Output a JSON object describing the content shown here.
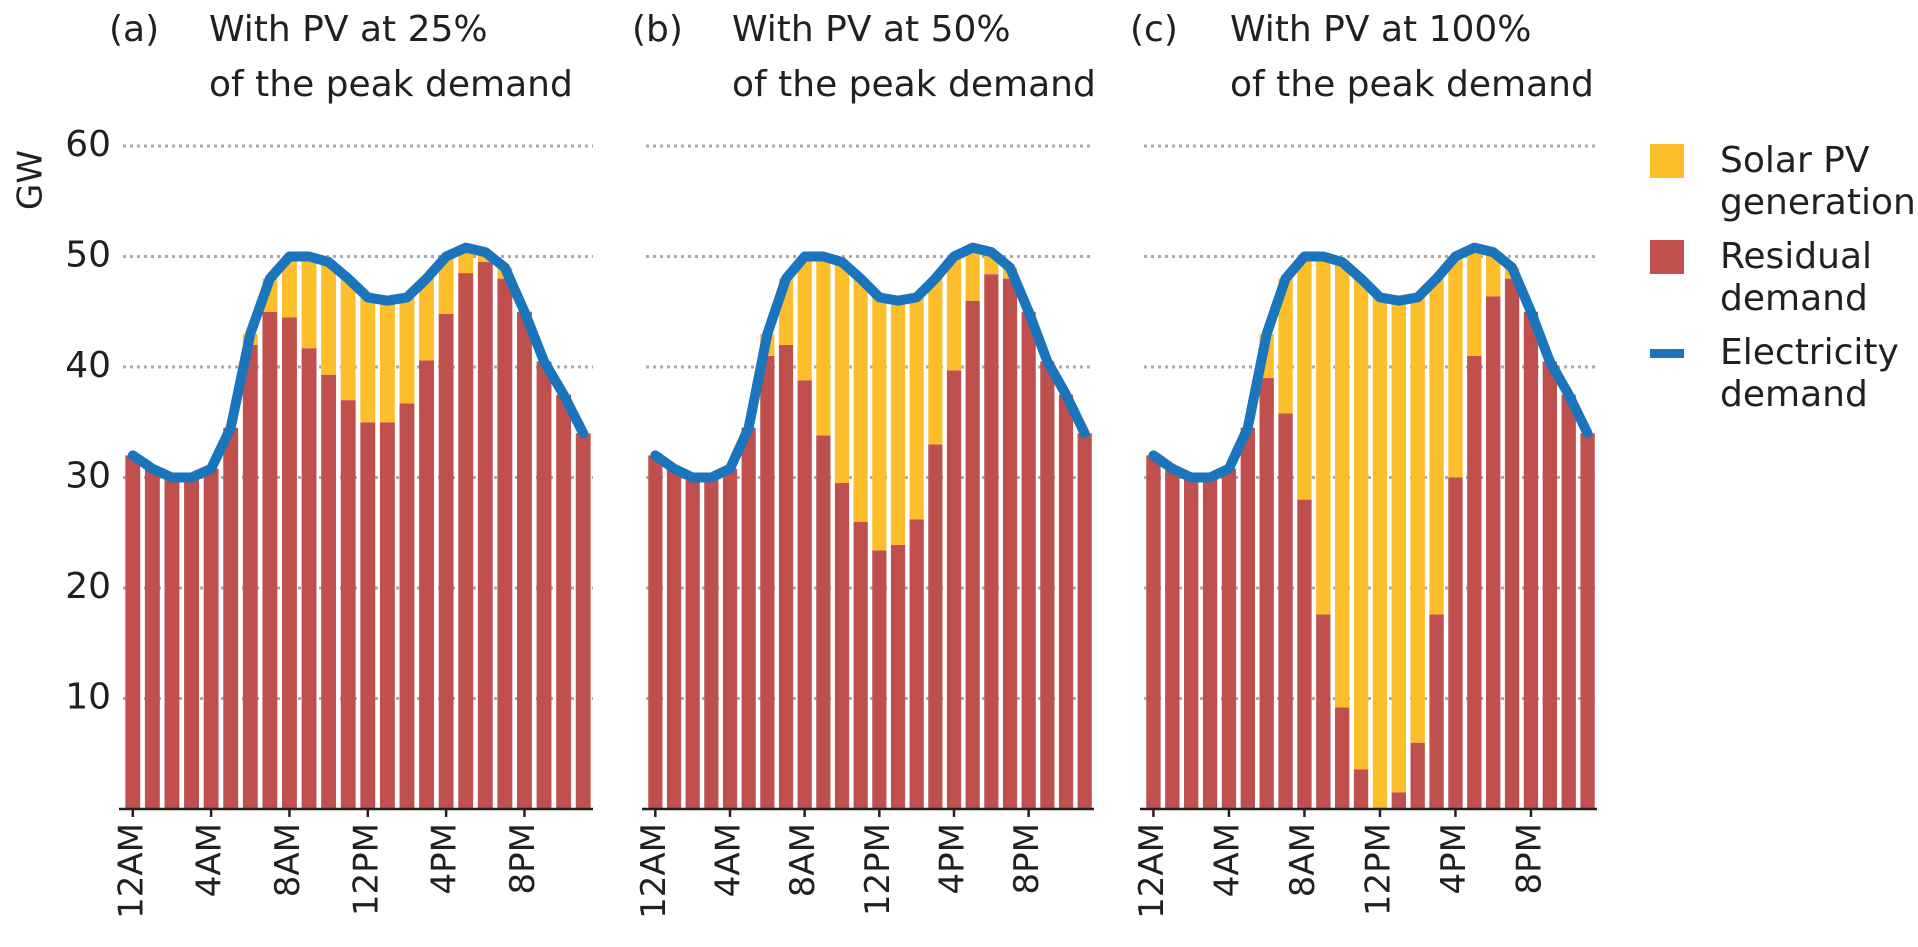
{
  "chart_data": [
    {
      "type": "bar",
      "stacked": true,
      "panel": "(a)",
      "title": [
        "With PV at 25%",
        "of the peak demand"
      ],
      "ylabel": "GW",
      "categories": [
        "12AM",
        null,
        null,
        null,
        "4AM",
        null,
        null,
        null,
        "8AM",
        null,
        null,
        null,
        "12PM",
        null,
        null,
        null,
        "4PM",
        null,
        null,
        null,
        "8PM",
        null,
        null,
        null
      ],
      "series": [
        {
          "name": "Solar PV generation",
          "type": "bar",
          "color": "#fdbe2c",
          "values": [
            0,
            0,
            0,
            0,
            0,
            0,
            1,
            3,
            5.5,
            8.3,
            10.2,
            11,
            11.3,
            11,
            9.6,
            7.4,
            5.2,
            2.3,
            0.9,
            1,
            0,
            0,
            0,
            0
          ]
        },
        {
          "name": "Residual demand",
          "type": "bar",
          "color": "#c0504d",
          "values": [
            32,
            30.8,
            30,
            30,
            30.8,
            34.5,
            42,
            45,
            44.5,
            41.7,
            39.3,
            37,
            35,
            35,
            36.7,
            40.6,
            44.8,
            48.5,
            49.5,
            48,
            45,
            40.5,
            37.5,
            34
          ]
        },
        {
          "name": "Electricity demand",
          "type": "line",
          "color": "#1a75bc",
          "values": [
            32,
            30.8,
            30,
            30,
            30.8,
            34.5,
            43,
            48,
            50,
            50,
            49.5,
            48,
            46.3,
            46,
            46.3,
            48,
            50,
            50.8,
            50.4,
            49,
            45,
            40.5,
            37.5,
            34
          ]
        }
      ],
      "ylim": [
        0,
        60
      ],
      "yticks": [
        10,
        20,
        30,
        40,
        50,
        60
      ],
      "grid": true
    },
    {
      "type": "bar",
      "stacked": true,
      "panel": "(b)",
      "title": [
        "With PV at 50%",
        "of the peak demand"
      ],
      "categories": [
        "12AM",
        null,
        null,
        null,
        "4AM",
        null,
        null,
        null,
        "8AM",
        null,
        null,
        null,
        "12PM",
        null,
        null,
        null,
        "4PM",
        null,
        null,
        null,
        "8PM",
        null,
        null,
        null
      ],
      "series": [
        {
          "type": "bar",
          "color": "#fdbe2c",
          "values": [
            0,
            0,
            0,
            0,
            0,
            0,
            2,
            6,
            11.2,
            16.2,
            20,
            22,
            22.9,
            22.1,
            20.1,
            15,
            10.3,
            4.8,
            2,
            1,
            0,
            0,
            0,
            0
          ]
        },
        {
          "type": "bar",
          "color": "#c0504d",
          "values": [
            32,
            30.8,
            30,
            30,
            30.8,
            34.5,
            41,
            42,
            38.8,
            33.8,
            29.5,
            26,
            23.4,
            23.9,
            26.2,
            33,
            39.7,
            46,
            48.4,
            48,
            45,
            40.5,
            37.5,
            34
          ]
        },
        {
          "type": "line",
          "color": "#1a75bc",
          "values": [
            32,
            30.8,
            30,
            30,
            30.8,
            34.5,
            43,
            48,
            50,
            50,
            49.5,
            48,
            46.3,
            46,
            46.3,
            48,
            50,
            50.8,
            50.4,
            49,
            45,
            40.5,
            37.5,
            34
          ]
        }
      ],
      "ylim": [
        0,
        60
      ],
      "yticks": [
        10,
        20,
        30,
        40,
        50,
        60
      ],
      "grid": true
    },
    {
      "type": "bar",
      "stacked": true,
      "panel": "(c)",
      "title": [
        "With PV at 100%",
        "of the peak demand"
      ],
      "categories": [
        "12AM",
        null,
        null,
        null,
        "4AM",
        null,
        null,
        null,
        "8AM",
        null,
        null,
        null,
        "12PM",
        null,
        null,
        null,
        "4PM",
        null,
        null,
        null,
        "8PM",
        null,
        null,
        null
      ],
      "series": [
        {
          "type": "bar",
          "color": "#fdbe2c",
          "values": [
            0,
            0,
            0,
            0,
            0,
            0,
            4,
            12.2,
            22,
            32.4,
            40.3,
            44.4,
            46.3,
            44.5,
            40.3,
            30.4,
            20,
            9.8,
            4,
            1,
            0,
            0,
            0,
            0
          ]
        },
        {
          "type": "bar",
          "color": "#c0504d",
          "values": [
            32,
            30.8,
            30,
            30,
            30.8,
            34.5,
            39,
            35.8,
            28,
            17.6,
            9.2,
            3.6,
            0,
            1.5,
            6,
            17.6,
            30,
            41,
            46.4,
            48,
            45,
            40.5,
            37.5,
            34
          ]
        },
        {
          "type": "line",
          "color": "#1a75bc",
          "values": [
            32,
            30.8,
            30,
            30,
            30.8,
            34.5,
            43,
            48,
            50,
            50,
            49.5,
            48,
            46.3,
            46,
            46.3,
            48,
            50,
            50.8,
            50.4,
            49,
            45,
            40.5,
            37.5,
            34
          ]
        }
      ],
      "ylim": [
        0,
        60
      ],
      "yticks": [
        10,
        20,
        30,
        40,
        50,
        60
      ],
      "grid": true
    }
  ]
}
